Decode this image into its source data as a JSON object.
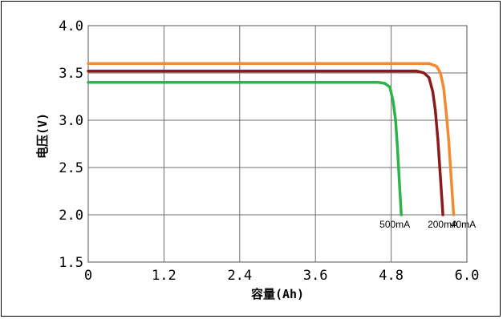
{
  "chart_data": {
    "type": "line",
    "title": "",
    "xlabel": "容量(Ah)",
    "ylabel": "电压(V)",
    "xlim": [
      0,
      6.0
    ],
    "ylim": [
      1.5,
      4.0
    ],
    "x_ticks": [
      "0",
      "1.2",
      "2.4",
      "3.6",
      "4.8",
      "6.0"
    ],
    "y_ticks": [
      "4.0",
      "3.5",
      "3.0",
      "2.5",
      "2.0",
      "1.5"
    ],
    "grid": true,
    "series": [
      {
        "name": "500mA",
        "color": "#2db34a",
        "x": [
          0,
          4.6,
          4.7,
          4.78,
          4.83,
          4.87,
          4.9,
          4.93,
          4.96
        ],
        "y": [
          3.4,
          3.4,
          3.39,
          3.35,
          3.2,
          3.0,
          2.7,
          2.35,
          2.0
        ]
      },
      {
        "name": "200mA",
        "color": "#8b1a1a",
        "x": [
          0,
          5.2,
          5.32,
          5.4,
          5.46,
          5.5,
          5.54,
          5.58,
          5.62
        ],
        "y": [
          3.52,
          3.52,
          3.5,
          3.45,
          3.3,
          3.1,
          2.8,
          2.4,
          2.0
        ]
      },
      {
        "name": "40mA",
        "color": "#f28a30",
        "x": [
          0,
          5.4,
          5.52,
          5.58,
          5.63,
          5.67,
          5.71,
          5.75,
          5.79
        ],
        "y": [
          3.6,
          3.6,
          3.57,
          3.5,
          3.35,
          3.1,
          2.8,
          2.4,
          2.0
        ]
      }
    ]
  }
}
